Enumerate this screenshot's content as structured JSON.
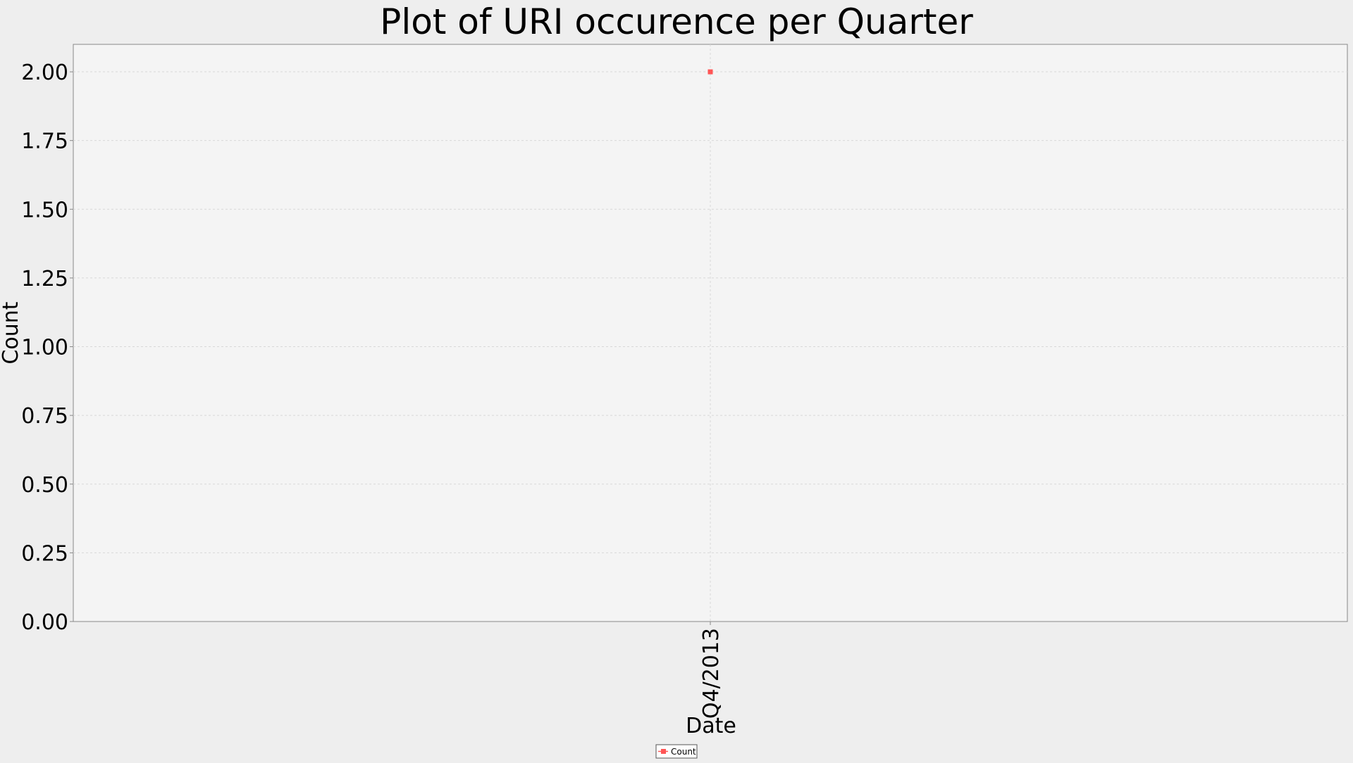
{
  "chart_data": {
    "type": "scatter",
    "title": "Plot of URI occurence per Quarter",
    "xlabel": "Date",
    "ylabel": "Count",
    "categories": [
      "Q4/2013"
    ],
    "series": [
      {
        "name": "Count",
        "values": [
          2
        ]
      }
    ],
    "ylim": [
      0,
      2.1
    ],
    "yticks": [
      "0.00",
      "0.25",
      "0.50",
      "0.75",
      "1.00",
      "1.25",
      "1.50",
      "1.75",
      "2.00"
    ],
    "grid": true,
    "legend_position": "bottom-center",
    "colors": {
      "page_background": "#eeeeee",
      "plot_background": "#f4f4f4",
      "grid": "#d8d8d8",
      "axis": "#888888",
      "marker": "#ff5555"
    }
  }
}
